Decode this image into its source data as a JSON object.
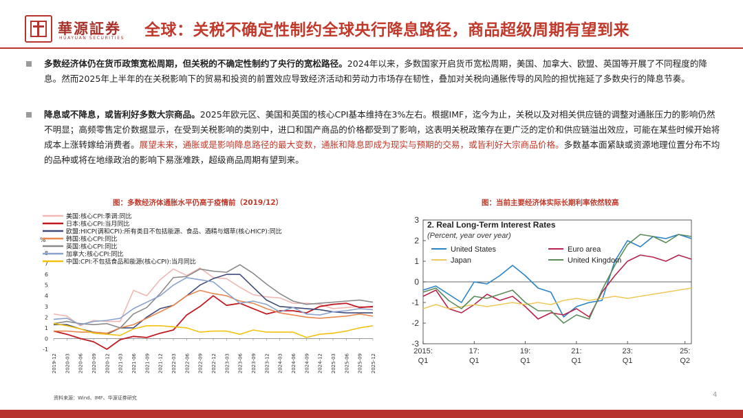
{
  "header": {
    "brand_cn": "華源証券",
    "brand_en": "HUAYUAN SECURITIES",
    "title": "全球：关税不确定性制约全球央行降息路径，商品超级周期有望到来"
  },
  "paragraphs": [
    {
      "lead": "多数经济体仍在货币政策宽松周期，但关税的不确定性制约了央行的宽松路径。",
      "body": "2024年以来，多数国家开启货币宽松周期，美国、加拿大、欧盟、英国等开展了不同程度的降息。然而2025年上半年的在关税影响下的贸易和投资的前置效应导致经济活动和劳动力市场存在韧性，叠加对关税向通胀传导的风险的担忧拖延了多数央行的降息节奏。",
      "tail": ""
    },
    {
      "lead": "降息或不降息，或皆利好多数大宗商品。",
      "body": "2025年欧元区、美国和英国的核心CPI基本维持在3%左右。根据IMF，迄今为止，关税以及对相关供应链的调整对通胀压力的影响仍然不明显；高频零售定价数据显示，在受到关税影响的类别中，进口和国产商品的价格都受到了影响，这表明关税政策存在更广泛的定价和供应链溢出效应，可能在某些时候开始将成本上涨转嫁给消费者。",
      "tail_red": "展望未来，通胀或是影响降息路径的最大变数，通胀和降息即成为现实与预期的交易，或皆利好大宗商品价格。",
      "tail": "多数基本面紧缺或资源地理位置分布不均的品种或将在地缘政治的影响下易涨难跌，超级商品周期有望到来。"
    }
  ],
  "captions": {
    "left": "图：多数经济体通胀水平仍高于疫情前（2019/12）",
    "right": "图：当前主要经济体实际长期利率依然较高"
  },
  "source": "资料来源：Wind、IMF、华源证券研究",
  "page_number": "4",
  "chart_data": [
    {
      "type": "line",
      "title": "",
      "ylabel": "%",
      "ylim": [
        -1,
        8
      ],
      "yticks": [
        "-1",
        "0",
        "1",
        "2",
        "3",
        "4",
        "5",
        "6",
        "7",
        "8"
      ],
      "categories": [
        "2019-12",
        "2020-03",
        "2020-06",
        "2020-09",
        "2020-12",
        "2021-03",
        "2021-06",
        "2021-09",
        "2021-12",
        "2022-03",
        "2022-06",
        "2022-09",
        "2022-12",
        "2023-03",
        "2023-06",
        "2023-09",
        "2023-12",
        "2024-03",
        "2024-06",
        "2024-09",
        "2024-12",
        "2025-03",
        "2025-06",
        "2025-09",
        "2025-12"
      ],
      "legend_position": "top-left",
      "series": [
        {
          "name": "美国:核心CPI:季调:同比",
          "color": "#f1b7b3",
          "values": [
            2.3,
            2.1,
            1.2,
            1.7,
            1.6,
            1.6,
            4.5,
            4.0,
            5.5,
            6.5,
            5.9,
            6.6,
            5.7,
            5.6,
            4.8,
            4.1,
            3.9,
            3.8,
            3.3,
            3.3,
            3.2,
            2.8,
            2.9,
            3.0,
            2.9
          ]
        },
        {
          "name": "日本:核心CPI:当月同比",
          "color": "#c0181f",
          "values": [
            0.7,
            0.4,
            0.0,
            -0.3,
            -1.0,
            -0.1,
            0.2,
            0.1,
            0.5,
            0.8,
            2.2,
            3.0,
            4.0,
            3.1,
            3.3,
            2.8,
            2.3,
            2.6,
            2.6,
            2.4,
            3.0,
            3.2,
            3.3,
            2.9,
            3.0
          ]
        },
        {
          "name": "欧盟:HICP(调和CPI):所有类目不包括能源、食品、酒精与烟草(核心HICP):同比",
          "color": "#3d4a7a",
          "values": [
            1.3,
            1.3,
            0.9,
            0.6,
            0.4,
            1.0,
            1.0,
            2.0,
            2.8,
            3.1,
            4.0,
            5.0,
            5.6,
            6.0,
            6.0,
            4.8,
            3.6,
            3.0,
            2.9,
            2.8,
            2.7,
            2.5,
            2.4,
            2.4,
            2.4
          ]
        },
        {
          "name": "韩国:核心CPI:同比",
          "color": "#e8874f",
          "values": [
            0.7,
            0.7,
            0.6,
            0.6,
            0.5,
            1.0,
            1.3,
            1.9,
            2.5,
            3.1,
            4.0,
            4.5,
            4.2,
            4.0,
            3.5,
            3.3,
            2.8,
            2.4,
            2.2,
            2.0,
            1.9,
            2.0,
            2.1,
            2.3,
            2.1
          ]
        },
        {
          "name": "英国:核心CPI:同比",
          "color": "#8a8a8a",
          "values": [
            1.4,
            1.6,
            1.4,
            1.3,
            1.4,
            1.0,
            2.3,
            2.9,
            4.2,
            5.7,
            5.8,
            6.5,
            6.3,
            6.2,
            6.9,
            6.1,
            5.1,
            4.2,
            3.5,
            3.2,
            3.3,
            3.4,
            3.5,
            3.6,
            3.4
          ]
        },
        {
          "name": "加拿大:核心CPI:同比",
          "color": "#8aa3cc",
          "values": [
            1.8,
            1.9,
            1.3,
            1.6,
            1.7,
            1.9,
            2.8,
            3.4,
            4.0,
            5.0,
            5.7,
            5.5,
            5.3,
            4.3,
            3.3,
            3.5,
            3.2,
            2.5,
            2.9,
            2.3,
            2.2,
            2.5,
            2.6,
            2.8,
            2.7
          ]
        },
        {
          "name": "中国:CPI:不包括食品和能源(核心CPI):当月同比",
          "color": "#f2c20e",
          "values": [
            1.4,
            1.2,
            0.9,
            0.5,
            0.4,
            0.3,
            0.9,
            1.2,
            1.2,
            1.1,
            1.0,
            0.6,
            0.7,
            0.7,
            0.4,
            0.8,
            0.6,
            0.6,
            0.6,
            0.1,
            0.4,
            0.5,
            0.7,
            1.0,
            1.2
          ]
        }
      ]
    },
    {
      "type": "line",
      "title": "2. Real Long-Term Interest Rates",
      "subtitle": "(Percent, year over year)",
      "ylim": [
        -3,
        3
      ],
      "yticks": [
        "-3",
        "-2",
        "-1",
        "0",
        "1",
        "2",
        "3"
      ],
      "xticks": [
        {
          "top": "2015:",
          "bottom": "Q1"
        },
        {
          "top": "17:",
          "bottom": "Q1"
        },
        {
          "top": "19:",
          "bottom": "Q1"
        },
        {
          "top": "21:",
          "bottom": "Q1"
        },
        {
          "top": "23:",
          "bottom": "Q1"
        },
        {
          "top": "25:",
          "bottom": "Q2"
        }
      ],
      "x_range": [
        2015.0,
        2025.5
      ],
      "legend_position": "top-left",
      "series": [
        {
          "name": "United States",
          "color": "#2a82c7",
          "x": [
            2015.0,
            2015.5,
            2016.0,
            2016.5,
            2017.0,
            2017.5,
            2018.0,
            2018.5,
            2019.0,
            2019.5,
            2020.0,
            2020.5,
            2021.0,
            2021.5,
            2022.0,
            2022.5,
            2023.0,
            2023.5,
            2024.0,
            2024.5,
            2025.0,
            2025.5
          ],
          "values": [
            -0.4,
            -0.2,
            -0.6,
            -1.0,
            0.0,
            -0.1,
            0.3,
            0.8,
            0.3,
            -0.3,
            -0.5,
            -1.7,
            -1.2,
            -1.0,
            -0.9,
            1.0,
            2.0,
            1.7,
            2.2,
            2.1,
            2.3,
            2.1
          ]
        },
        {
          "name": "Euro area",
          "color": "#b5234a",
          "x": [
            2015.0,
            2015.5,
            2016.0,
            2016.5,
            2017.0,
            2017.5,
            2018.0,
            2018.5,
            2019.0,
            2019.5,
            2020.0,
            2020.5,
            2021.0,
            2021.5,
            2022.0,
            2022.5,
            2023.0,
            2023.5,
            2024.0,
            2024.5,
            2025.0,
            2025.5
          ],
          "values": [
            -0.7,
            -0.4,
            -1.3,
            -1.5,
            -1.1,
            -0.6,
            -0.9,
            -0.7,
            -1.2,
            -1.8,
            -1.5,
            -1.6,
            -1.3,
            -1.7,
            -0.5,
            0.3,
            1.0,
            1.3,
            1.2,
            1.0,
            1.3,
            1.1
          ]
        },
        {
          "name": "Japan",
          "color": "#f0c75a",
          "x": [
            2015.0,
            2015.5,
            2016.0,
            2016.5,
            2017.0,
            2017.5,
            2018.0,
            2018.5,
            2019.0,
            2019.5,
            2020.0,
            2020.5,
            2021.0,
            2021.5,
            2022.0,
            2022.5,
            2023.0,
            2023.5,
            2024.0,
            2024.5,
            2025.0,
            2025.5
          ],
          "values": [
            -1.3,
            -1.1,
            -1.3,
            -1.2,
            -1.1,
            -1.2,
            -1.1,
            -1.0,
            -1.1,
            -1.0,
            -1.1,
            -0.9,
            -0.8,
            -0.9,
            -0.8,
            -0.7,
            -0.8,
            -0.7,
            -0.6,
            -0.5,
            -0.4,
            -0.3
          ]
        },
        {
          "name": "United Kingdom",
          "color": "#5b8a5a",
          "x": [
            2015.0,
            2015.5,
            2016.0,
            2016.5,
            2017.0,
            2017.5,
            2018.0,
            2018.5,
            2019.0,
            2019.5,
            2020.0,
            2020.5,
            2021.0,
            2021.5,
            2022.0,
            2022.5,
            2023.0,
            2023.5,
            2024.0,
            2024.5,
            2025.0,
            2025.5
          ],
          "values": [
            -0.5,
            -0.3,
            -0.9,
            -1.3,
            -0.7,
            -0.8,
            -0.6,
            -0.4,
            -1.0,
            -1.4,
            -1.4,
            -2.0,
            -1.6,
            -1.8,
            -0.4,
            0.8,
            1.8,
            2.3,
            2.2,
            1.9,
            2.3,
            2.2
          ]
        }
      ]
    }
  ]
}
